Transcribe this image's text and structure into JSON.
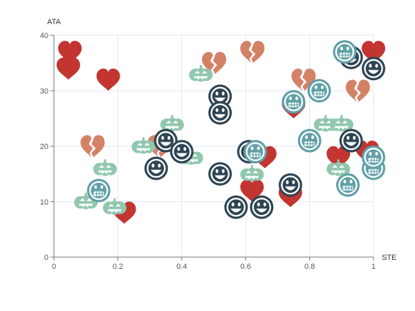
{
  "chart_data": {
    "type": "scatter",
    "xlabel": "STE",
    "ylabel": "ATA",
    "xlim": [
      0,
      1
    ],
    "ylim": [
      0,
      40
    ],
    "x_ticks": [
      "0",
      "0.2",
      "0.4",
      "0.6",
      "0.8",
      "1"
    ],
    "y_ticks": [
      "0",
      "10",
      "20",
      "30",
      "40"
    ],
    "grid": true,
    "colors": {
      "heart": "#c23531",
      "broken_heart": "#d48265",
      "pumpkin": "#91c7ae",
      "smiley_dark": "#2f4554",
      "smiley_teal": "#61a0a8"
    },
    "series": [
      {
        "icon": "heart-icon",
        "color": "#c23531",
        "points": [
          [
            0.05,
            37
          ],
          [
            0.045,
            34
          ],
          [
            0.17,
            32
          ],
          [
            0.22,
            8
          ],
          [
            0.75,
            27
          ],
          [
            0.62,
            12
          ],
          [
            0.66,
            18
          ],
          [
            0.74,
            11
          ],
          [
            0.89,
            18
          ],
          [
            0.98,
            19
          ],
          [
            1.0,
            37
          ]
        ]
      },
      {
        "icon": "broken-heart-icon",
        "color": "#d48265",
        "points": [
          [
            0.12,
            20
          ],
          [
            0.33,
            20
          ],
          [
            0.5,
            35
          ],
          [
            0.62,
            37
          ],
          [
            0.78,
            32
          ],
          [
            0.95,
            30
          ]
        ]
      },
      {
        "icon": "pumpkin-icon",
        "color": "#91c7ae",
        "points": [
          [
            0.1,
            10
          ],
          [
            0.16,
            16
          ],
          [
            0.19,
            9
          ],
          [
            0.28,
            20
          ],
          [
            0.37,
            24
          ],
          [
            0.43,
            18
          ],
          [
            0.46,
            33
          ],
          [
            0.62,
            15
          ],
          [
            0.85,
            24
          ],
          [
            0.9,
            24
          ],
          [
            0.89,
            16
          ]
        ]
      },
      {
        "icon": "smiley-dark-icon",
        "color": "#2f4554",
        "points": [
          [
            0.32,
            16
          ],
          [
            0.35,
            21
          ],
          [
            0.4,
            19
          ],
          [
            0.52,
            29
          ],
          [
            0.52,
            26
          ],
          [
            0.52,
            15
          ],
          [
            0.57,
            9
          ],
          [
            0.61,
            19
          ],
          [
            0.65,
            9
          ],
          [
            0.74,
            13
          ],
          [
            0.93,
            21
          ],
          [
            0.93,
            36
          ],
          [
            1.0,
            34
          ]
        ]
      },
      {
        "icon": "smiley-teal-icon",
        "color": "#61a0a8",
        "points": [
          [
            0.14,
            12
          ],
          [
            0.63,
            19
          ],
          [
            0.75,
            28
          ],
          [
            0.8,
            21
          ],
          [
            0.83,
            30
          ],
          [
            0.91,
            37
          ],
          [
            0.92,
            13
          ],
          [
            1.0,
            16
          ],
          [
            1.0,
            18
          ]
        ]
      }
    ]
  }
}
